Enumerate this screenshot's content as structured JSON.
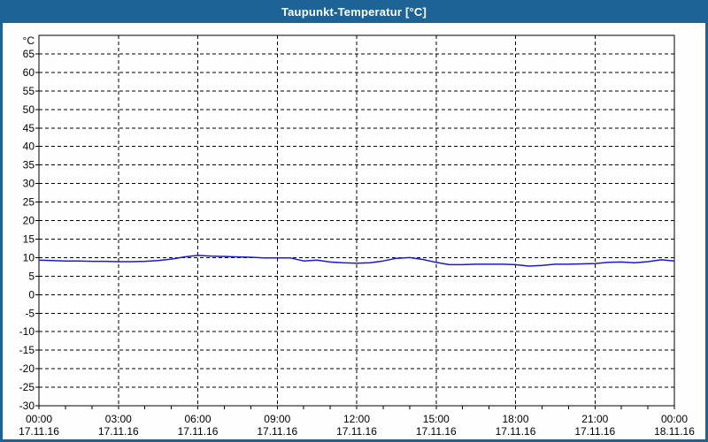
{
  "window": {
    "title": "Taupunkt-Temperatur [°C]"
  },
  "colors": {
    "titlebar": "#1e6396",
    "window_border": "#1e6396",
    "line": "#1a1acc",
    "grid": "#000000",
    "background": "#fdfefd",
    "title_text": "#ffffff"
  },
  "chart_data": {
    "type": "line",
    "title": "Taupunkt-Temperatur [°C]",
    "unit_label": "°C",
    "ylim": [
      -30,
      70
    ],
    "yticks": [
      -30,
      -25,
      -20,
      -15,
      -10,
      -5,
      0,
      5,
      10,
      15,
      20,
      25,
      30,
      35,
      40,
      45,
      50,
      55,
      60,
      65
    ],
    "grid_style": "dashed",
    "x_hours_total": 24,
    "x_major_step_hours": 3,
    "x_minor_step_hours": 1,
    "xticks": [
      {
        "time": "00:00",
        "date": "17.11.16"
      },
      {
        "time": "03:00",
        "date": "17.11.16"
      },
      {
        "time": "06:00",
        "date": "17.11.16"
      },
      {
        "time": "09:00",
        "date": "17.11.16"
      },
      {
        "time": "12:00",
        "date": "17.11.16"
      },
      {
        "time": "15:00",
        "date": "17.11.16"
      },
      {
        "time": "18:00",
        "date": "17.11.16"
      },
      {
        "time": "21:00",
        "date": "17.11.16"
      },
      {
        "time": "00:00",
        "date": "18.11.16"
      }
    ],
    "series": [
      {
        "name": "Taupunkt-Temperatur",
        "color": "#1a1acc",
        "x_step_hours": 0.5,
        "values": [
          9.3,
          9.2,
          9.1,
          9.1,
          9.0,
          9.0,
          8.9,
          8.9,
          9.0,
          9.2,
          9.6,
          10.2,
          10.6,
          10.4,
          10.3,
          10.2,
          10.1,
          9.9,
          9.9,
          9.9,
          9.1,
          9.3,
          8.8,
          8.6,
          8.5,
          8.6,
          9.1,
          9.8,
          10.0,
          9.5,
          8.7,
          8.1,
          8.1,
          8.2,
          8.2,
          8.2,
          8.1,
          7.7,
          7.9,
          8.2,
          8.2,
          8.3,
          8.4,
          8.7,
          8.8,
          8.6,
          8.9,
          9.4,
          9.1
        ]
      }
    ]
  }
}
